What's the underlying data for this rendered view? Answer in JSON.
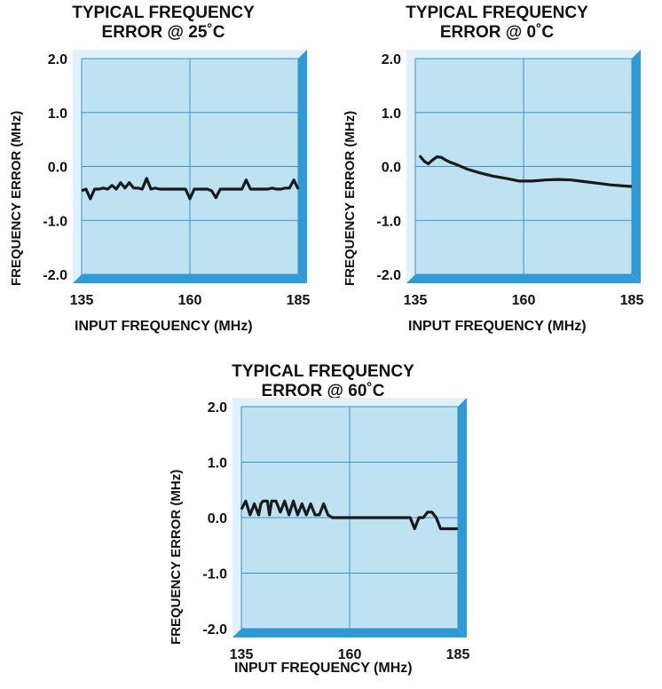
{
  "chart_data": [
    {
      "type": "line",
      "title": "TYPICAL FREQUENCY\nERROR @ 25˚C",
      "xlabel": "INPUT FREQUENCY (MHz)",
      "ylabel": "FREQUENCY ERROR (MHz)",
      "xlim": [
        135,
        185
      ],
      "ylim": [
        -2.0,
        2.0
      ],
      "xticks": [
        "135",
        "160",
        "185"
      ],
      "yticks": [
        "2.0",
        "1.0",
        "0.0",
        "-1.0",
        "-2.0"
      ],
      "grid": true,
      "series": [
        {
          "x": [
            135,
            136,
            137,
            138,
            139,
            140,
            141,
            142,
            143,
            144,
            145,
            146,
            147,
            148,
            149,
            150,
            151,
            152,
            153,
            154,
            155,
            156,
            157,
            158,
            159,
            160,
            161,
            162,
            163,
            164,
            165,
            166,
            167,
            168,
            169,
            170,
            171,
            172,
            173,
            174,
            175,
            176,
            177,
            178,
            179,
            180,
            181,
            182,
            183,
            184,
            185
          ],
          "y": [
            -0.45,
            -0.42,
            -0.6,
            -0.42,
            -0.42,
            -0.4,
            -0.42,
            -0.35,
            -0.42,
            -0.3,
            -0.4,
            -0.3,
            -0.4,
            -0.4,
            -0.42,
            -0.22,
            -0.42,
            -0.4,
            -0.42,
            -0.42,
            -0.42,
            -0.42,
            -0.42,
            -0.42,
            -0.42,
            -0.6,
            -0.42,
            -0.42,
            -0.42,
            -0.42,
            -0.45,
            -0.58,
            -0.42,
            -0.42,
            -0.42,
            -0.42,
            -0.42,
            -0.42,
            -0.25,
            -0.42,
            -0.42,
            -0.42,
            -0.42,
            -0.42,
            -0.4,
            -0.42,
            -0.42,
            -0.4,
            -0.4,
            -0.25,
            -0.42
          ],
          "color": "#1a1a1a"
        }
      ]
    },
    {
      "type": "line",
      "title": "TYPICAL FREQUENCY\nERROR @ 0˚C",
      "xlabel": "INPUT FREQUENCY (MHz)",
      "ylabel": "FREQUENCY ERROR (MHz)",
      "xlim": [
        135,
        185
      ],
      "ylim": [
        -2.0,
        2.0
      ],
      "xticks": [
        "135",
        "160",
        "185"
      ],
      "yticks": [
        "2.0",
        "1.0",
        "0.0",
        "-1.0",
        "-2.0"
      ],
      "grid": true,
      "series": [
        {
          "x": [
            136,
            137,
            138,
            139,
            140,
            141,
            142,
            143,
            145,
            147,
            150,
            153,
            156,
            159,
            162,
            165,
            168,
            171,
            174,
            177,
            180,
            183,
            185
          ],
          "y": [
            0.2,
            0.1,
            0.05,
            0.12,
            0.18,
            0.17,
            0.12,
            0.08,
            0.02,
            -0.05,
            -0.12,
            -0.18,
            -0.22,
            -0.27,
            -0.27,
            -0.25,
            -0.24,
            -0.25,
            -0.28,
            -0.31,
            -0.34,
            -0.36,
            -0.37
          ],
          "color": "#1a1a1a"
        }
      ]
    },
    {
      "type": "line",
      "title": "TYPICAL FREQUENCY\nERROR @ 60˚C",
      "xlabel": "INPUT FREQUENCY (MHz)",
      "ylabel": "FREQUENCY ERROR (MHz)",
      "xlim": [
        135,
        185
      ],
      "ylim": [
        -2.0,
        2.0
      ],
      "xticks": [
        "135",
        "160",
        "185"
      ],
      "yticks": [
        "2.0",
        "1.0",
        "0.0",
        "-1.0",
        "-2.0"
      ],
      "grid": true,
      "series": [
        {
          "x": [
            135,
            136,
            137,
            138,
            139,
            139.5,
            140,
            141,
            141.5,
            142,
            143,
            144,
            145,
            146,
            147,
            148,
            149,
            150,
            151,
            152,
            153,
            154,
            155,
            156,
            158,
            160,
            163,
            166,
            169,
            172,
            174,
            175,
            176,
            177,
            178,
            179,
            180,
            181,
            182,
            183,
            185
          ],
          "y": [
            0.15,
            0.3,
            0.05,
            0.25,
            0.05,
            0.25,
            0.3,
            0.3,
            0.05,
            0.3,
            0.3,
            0.1,
            0.3,
            0.05,
            0.3,
            0.05,
            0.25,
            0.05,
            0.25,
            0.05,
            0.05,
            0.25,
            0.05,
            0.0,
            0.0,
            0.0,
            0.0,
            0.0,
            0.0,
            0.0,
            0.0,
            -0.2,
            0.0,
            0.0,
            0.1,
            0.1,
            0.0,
            -0.2,
            -0.2,
            -0.2,
            -0.2
          ],
          "color": "#1a1a1a"
        }
      ]
    }
  ],
  "colors": {
    "panel_fill": "#bfe2f3",
    "panel_border_light": "#dff1fa",
    "panel_border_dark": "#2e9bd6",
    "grid": "#3a93cc",
    "line": "#1a1a1a"
  }
}
